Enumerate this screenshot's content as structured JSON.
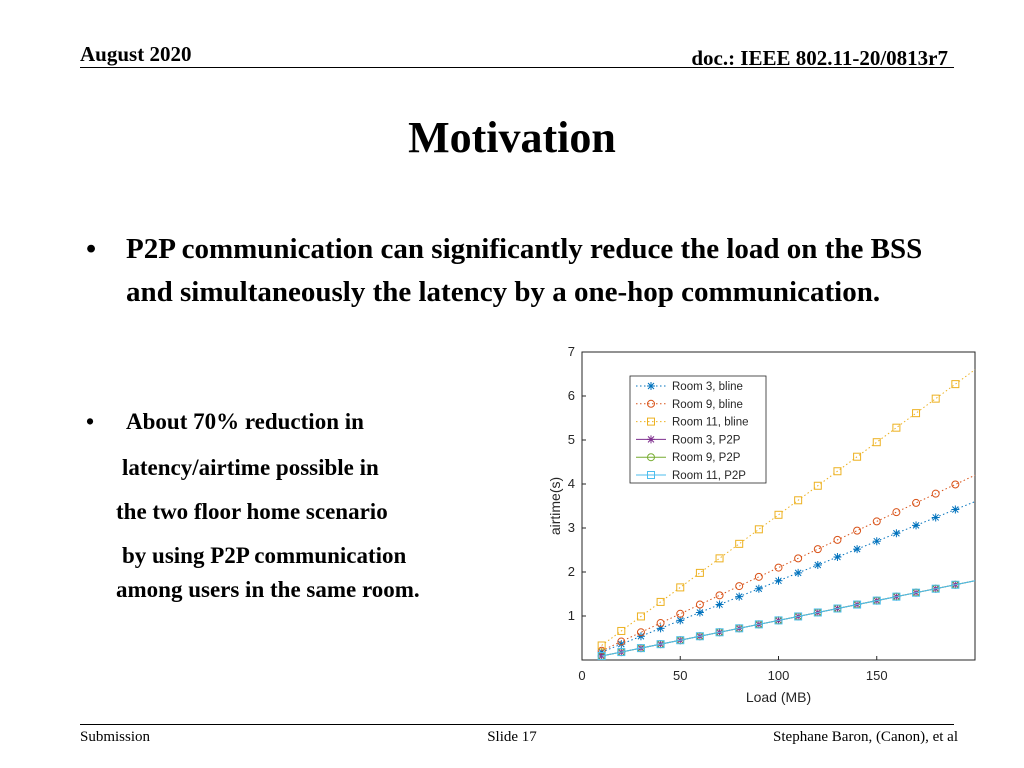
{
  "header": {
    "date": "August 2020",
    "doc": "doc.: IEEE 802.11-20/0813r7"
  },
  "title": "Motivation",
  "bullets": {
    "first": "P2P communication can significantly reduce the load on the BSS and simultaneously the latency by a one-hop communication.",
    "second_lines": [
      "About 70% reduction in",
      "latency/airtime possible in",
      "the two floor home scenario",
      "by using P2P communication",
      "among users in the same room."
    ]
  },
  "footer": {
    "left": "Submission",
    "center": "Slide 17",
    "right": "Stephane Baron, (Canon), et al"
  },
  "chart_data": {
    "type": "line",
    "xlabel": "Load (MB)",
    "ylabel": "airtime(s)",
    "xlim": [
      0,
      200
    ],
    "ylim": [
      0,
      7
    ],
    "xticks": [
      0,
      50,
      100,
      150
    ],
    "yticks": [
      1,
      2,
      3,
      4,
      5,
      6,
      7
    ],
    "legend": "top-left",
    "x": [
      10,
      20,
      30,
      40,
      50,
      60,
      70,
      80,
      90,
      100,
      110,
      120,
      130,
      140,
      150,
      160,
      170,
      180,
      190
    ],
    "series": [
      {
        "name": "Room 3, bline",
        "color": "#0072bd",
        "marker": "asterisk",
        "line": "dotted",
        "values": [
          0.18,
          0.36,
          0.54,
          0.72,
          0.9,
          1.08,
          1.26,
          1.44,
          1.62,
          1.8,
          1.98,
          2.16,
          2.34,
          2.52,
          2.7,
          2.88,
          3.06,
          3.24,
          3.42
        ]
      },
      {
        "name": "Room 9, bline",
        "color": "#d95319",
        "marker": "circle",
        "line": "dotted",
        "values": [
          0.21,
          0.42,
          0.63,
          0.84,
          1.05,
          1.26,
          1.47,
          1.68,
          1.89,
          2.1,
          2.31,
          2.52,
          2.73,
          2.94,
          3.15,
          3.36,
          3.57,
          3.78,
          3.99
        ]
      },
      {
        "name": "Room 11, bline",
        "color": "#edb120",
        "marker": "square",
        "line": "dotted",
        "values": [
          0.33,
          0.66,
          0.99,
          1.32,
          1.65,
          1.98,
          2.31,
          2.64,
          2.97,
          3.3,
          3.63,
          3.96,
          4.29,
          4.62,
          4.95,
          5.28,
          5.61,
          5.94,
          6.27
        ]
      },
      {
        "name": "Room 3, P2P",
        "color": "#7e2f8e",
        "marker": "asterisk",
        "line": "solid",
        "values": [
          0.09,
          0.18,
          0.27,
          0.36,
          0.45,
          0.54,
          0.63,
          0.72,
          0.81,
          0.9,
          0.99,
          1.08,
          1.17,
          1.26,
          1.35,
          1.44,
          1.53,
          1.62,
          1.71
        ]
      },
      {
        "name": "Room 9, P2P",
        "color": "#77ac30",
        "marker": "circle",
        "line": "solid",
        "values": [
          0.09,
          0.18,
          0.27,
          0.36,
          0.45,
          0.54,
          0.63,
          0.72,
          0.81,
          0.9,
          0.99,
          1.08,
          1.17,
          1.26,
          1.35,
          1.44,
          1.53,
          1.62,
          1.71
        ]
      },
      {
        "name": "Room 11, P2P",
        "color": "#4dbeee",
        "marker": "square",
        "line": "solid",
        "values": [
          0.09,
          0.18,
          0.27,
          0.36,
          0.45,
          0.54,
          0.63,
          0.72,
          0.81,
          0.9,
          0.99,
          1.08,
          1.17,
          1.26,
          1.35,
          1.44,
          1.53,
          1.62,
          1.71
        ]
      }
    ]
  }
}
